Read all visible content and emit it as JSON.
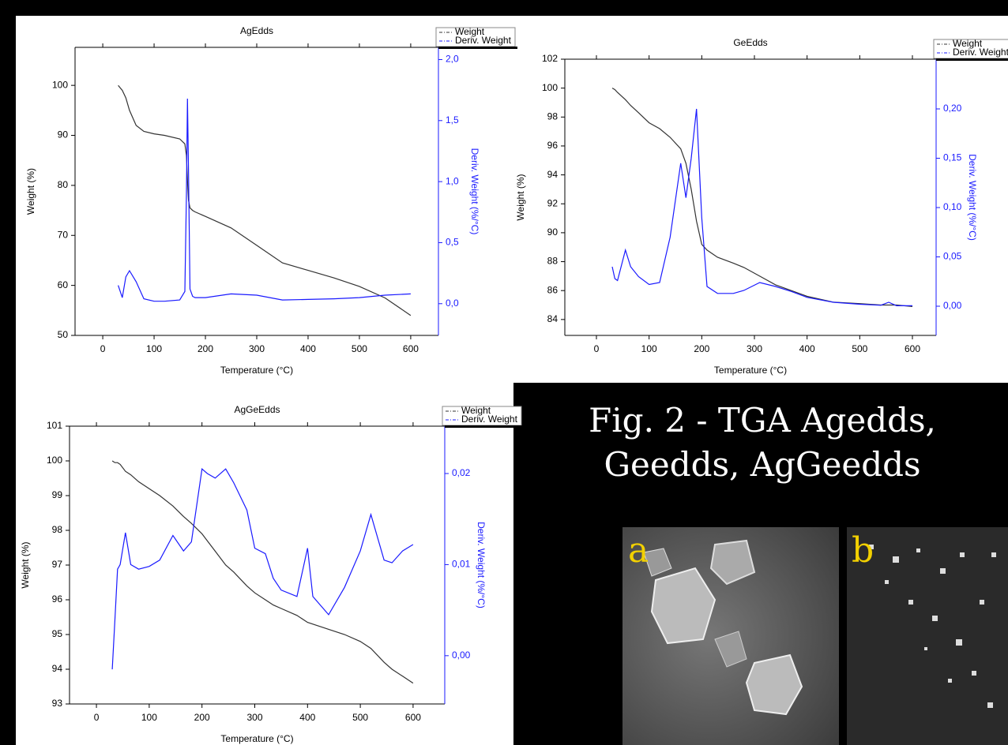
{
  "chart_data": [
    {
      "type": "line",
      "title": "AgEdds",
      "xlabel": "Temperature (°C)",
      "ylabel": "Weight (%)",
      "y2label": "Deriv. Weight (%/°C)",
      "legend": "upper right",
      "x": [
        30,
        38,
        45,
        52,
        65,
        80,
        100,
        120,
        150,
        160,
        163,
        165,
        167,
        170,
        175,
        180,
        200,
        250,
        300,
        350,
        400,
        450,
        500,
        550,
        600
      ],
      "xlim": [
        -54,
        654
      ],
      "xticks": [
        0,
        100,
        200,
        300,
        400,
        500,
        600
      ],
      "ylim": [
        50,
        107.6
      ],
      "yticks": [
        50,
        60,
        70,
        80,
        90,
        100
      ],
      "y2lim": [
        -0.26,
        2.1
      ],
      "y2ticks": [
        {
          "value": 0,
          "label": "0,0"
        },
        {
          "value": 0.5,
          "label": "0,5"
        },
        {
          "value": 1,
          "label": "1,0"
        },
        {
          "value": 1.5,
          "label": "1,5"
        },
        {
          "value": 2,
          "label": "2,0"
        }
      ],
      "series": [
        {
          "name": "Weight",
          "color": "#333333",
          "values": [
            100,
            99,
            97.5,
            95,
            92,
            90.8,
            90.3,
            90,
            89.3,
            88.3,
            86,
            81,
            77,
            75.5,
            75,
            74.7,
            73.8,
            71.5,
            68,
            64.5,
            63,
            61.5,
            59.8,
            57.5,
            54
          ]
        },
        {
          "name": "Deriv. Weight",
          "color": "#1a1aff",
          "axis": "y2",
          "values": [
            0.15,
            0.05,
            0.22,
            0.27,
            0.18,
            0.04,
            0.02,
            0.02,
            0.03,
            0.1,
            0.9,
            1.68,
            1.1,
            0.12,
            0.06,
            0.05,
            0.05,
            0.08,
            0.07,
            0.03,
            0.035,
            0.04,
            0.05,
            0.07,
            0.08
          ]
        }
      ]
    },
    {
      "type": "line",
      "title": "GeEdds",
      "xlabel": "Temperature (°C)",
      "ylabel": "Weight (%)",
      "y2label": "Deriv. Weight (%/°C)",
      "legend": "upper right",
      "x": [
        30,
        35,
        40,
        55,
        65,
        80,
        100,
        120,
        140,
        160,
        170,
        180,
        190,
        200,
        210,
        230,
        260,
        280,
        310,
        340,
        370,
        400,
        450,
        500,
        540,
        555,
        570,
        600
      ],
      "xlim": [
        -60,
        645
      ],
      "xticks": [
        0,
        100,
        200,
        300,
        400,
        500,
        600
      ],
      "ylim": [
        82.9,
        102
      ],
      "yticks": [
        84,
        86,
        88,
        90,
        92,
        94,
        96,
        98,
        100,
        102
      ],
      "y2lim": [
        -0.0296,
        0.2504
      ],
      "y2ticks": [
        {
          "value": 0,
          "label": "0,00"
        },
        {
          "value": 0.05,
          "label": "0,05"
        },
        {
          "value": 0.1,
          "label": "0,10"
        },
        {
          "value": 0.15,
          "label": "0,15"
        },
        {
          "value": 0.2,
          "label": "0,20"
        }
      ],
      "series": [
        {
          "name": "Weight",
          "color": "#333333",
          "values": [
            100,
            99.9,
            99.7,
            99.2,
            98.8,
            98.3,
            97.6,
            97.2,
            96.6,
            95.8,
            94.8,
            93,
            90.8,
            89.2,
            88.8,
            88.3,
            87.9,
            87.6,
            87,
            86.4,
            86,
            85.6,
            85.2,
            85.1,
            85,
            85,
            85,
            84.9
          ]
        },
        {
          "name": "Deriv. Weight",
          "color": "#1a1aff",
          "axis": "y2",
          "values": [
            0.04,
            0.028,
            0.026,
            0.057,
            0.04,
            0.03,
            0.022,
            0.024,
            0.07,
            0.145,
            0.11,
            0.15,
            0.2,
            0.09,
            0.02,
            0.013,
            0.013,
            0.016,
            0.024,
            0.02,
            0.015,
            0.009,
            0.004,
            0.002,
            0.001,
            0.004,
            0.0005,
            0.0005
          ]
        }
      ]
    },
    {
      "type": "line",
      "title": "AgGeEdds",
      "xlabel": "Temperature (°C)",
      "ylabel": "Weight (%)",
      "y2label": "Deriv. Weight (%/°C)",
      "legend": "upper right",
      "x": [
        30,
        35,
        40,
        45,
        55,
        65,
        80,
        100,
        120,
        145,
        165,
        180,
        200,
        210,
        225,
        245,
        260,
        285,
        300,
        320,
        335,
        350,
        380,
        400,
        410,
        440,
        470,
        500,
        520,
        545,
        560,
        580,
        600
      ],
      "xlim": [
        -51,
        660
      ],
      "xticks": [
        0,
        100,
        200,
        300,
        400,
        500,
        600
      ],
      "ylim": [
        93,
        101
      ],
      "yticks": [
        93,
        94,
        95,
        96,
        97,
        98,
        99,
        100,
        101
      ],
      "y2lim": [
        -0.0053,
        0.0252
      ],
      "y2ticks": [
        {
          "value": 0,
          "label": "0,00"
        },
        {
          "value": 0.01,
          "label": "0,01"
        },
        {
          "value": 0.02,
          "label": "0,02"
        }
      ],
      "series": [
        {
          "name": "Weight",
          "color": "#333333",
          "values": [
            100,
            99.95,
            99.95,
            99.9,
            99.7,
            99.6,
            99.4,
            99.2,
            99,
            98.7,
            98.4,
            98.2,
            97.9,
            97.7,
            97.4,
            97,
            96.8,
            96.4,
            96.2,
            96,
            95.85,
            95.75,
            95.55,
            95.35,
            95.3,
            95.15,
            95,
            94.8,
            94.6,
            94.2,
            94,
            93.8,
            93.6
          ]
        },
        {
          "name": "Deriv. Weight",
          "color": "#1a1aff",
          "axis": "y2",
          "values": [
            -0.0015,
            0.004,
            0.0095,
            0.01,
            0.0135,
            0.01,
            0.0095,
            0.0098,
            0.0105,
            0.0132,
            0.0115,
            0.0125,
            0.0205,
            0.02,
            0.0195,
            0.0205,
            0.019,
            0.016,
            0.0118,
            0.0112,
            0.0085,
            0.0072,
            0.0065,
            0.0118,
            0.0065,
            0.0045,
            0.0075,
            0.0115,
            0.0155,
            0.0105,
            0.0102,
            0.0115,
            0.0122
          ]
        }
      ]
    }
  ],
  "caption": "Fig. 2 - TGA Agedds, Geedds, AgGeedds",
  "panel_labels": [
    "a",
    "b"
  ]
}
